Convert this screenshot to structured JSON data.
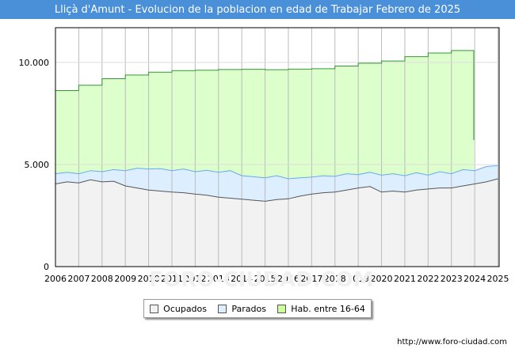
{
  "title": "Lliçà d'Amunt - Evolucion de la poblacion en edad de Trabajar Febrero de 2025",
  "footer_url": "http://www.foro-ciudad.com",
  "watermark": "FORO-CIUDAD.COM",
  "colors": {
    "title_bg": "#4a90d9",
    "ocupados_fill": "#f2f2f2",
    "ocupados_line": "#555555",
    "parados_fill": "#ddeeff",
    "parados_line": "#66aaee",
    "hab_fill": "#ddffcc",
    "hab_line": "#339933"
  },
  "chart_data": {
    "type": "area",
    "title": "Lliçà d'Amunt - Evolucion de la poblacion en edad de Trabajar Febrero de 2025",
    "xlabel": "",
    "ylabel": "",
    "xlim": [
      2006,
      2025.05
    ],
    "ylim": [
      0,
      11700
    ],
    "y_ticks": [
      0,
      5000,
      10000
    ],
    "y_tick_labels": [
      "0",
      "5.000",
      "10.000"
    ],
    "x_ticks": [
      2006,
      2007,
      2008,
      2009,
      2010,
      2011,
      2012,
      2013,
      2014,
      2015,
      2016,
      2017,
      2018,
      2019,
      2020,
      2021,
      2022,
      2023,
      2024,
      2025
    ],
    "x_tick_labels": [
      "2006",
      "2007",
      "2008",
      "2009",
      "2010",
      "2011",
      "2012",
      "2013",
      "2014",
      "2015",
      "2016",
      "2017",
      "2018",
      "2019",
      "2020",
      "2021",
      "2022",
      "2023",
      "2024",
      "2025"
    ],
    "grid": true,
    "legend_position": "bottom-center",
    "series": [
      {
        "name": "Hab. entre 16-64",
        "points": [
          [
            2006.0,
            8620
          ],
          [
            2007.0,
            8880
          ],
          [
            2008.0,
            9200
          ],
          [
            2009.0,
            9380
          ],
          [
            2010.0,
            9520
          ],
          [
            2011.0,
            9600
          ],
          [
            2012.0,
            9620
          ],
          [
            2013.0,
            9650
          ],
          [
            2014.0,
            9660
          ],
          [
            2015.0,
            9640
          ],
          [
            2016.0,
            9670
          ],
          [
            2017.0,
            9690
          ],
          [
            2018.0,
            9820
          ],
          [
            2019.0,
            9960
          ],
          [
            2020.0,
            10070
          ],
          [
            2021.0,
            10280
          ],
          [
            2022.0,
            10460
          ],
          [
            2023.0,
            10580
          ],
          [
            2023.92,
            10580
          ],
          [
            2023.96,
            6200
          ]
        ]
      },
      {
        "name": "Parados",
        "points": [
          [
            2006.0,
            4550
          ],
          [
            2006.5,
            4620
          ],
          [
            2007.0,
            4550
          ],
          [
            2007.5,
            4700
          ],
          [
            2008.0,
            4650
          ],
          [
            2008.5,
            4750
          ],
          [
            2009.0,
            4700
          ],
          [
            2009.5,
            4820
          ],
          [
            2010.0,
            4780
          ],
          [
            2010.5,
            4800
          ],
          [
            2011.0,
            4700
          ],
          [
            2011.5,
            4780
          ],
          [
            2012.0,
            4650
          ],
          [
            2012.5,
            4720
          ],
          [
            2013.0,
            4620
          ],
          [
            2013.5,
            4700
          ],
          [
            2014.0,
            4450
          ],
          [
            2014.5,
            4400
          ],
          [
            2015.0,
            4350
          ],
          [
            2015.5,
            4450
          ],
          [
            2016.0,
            4300
          ],
          [
            2016.5,
            4350
          ],
          [
            2017.0,
            4380
          ],
          [
            2017.5,
            4450
          ],
          [
            2018.0,
            4420
          ],
          [
            2018.5,
            4550
          ],
          [
            2019.0,
            4500
          ],
          [
            2019.5,
            4620
          ],
          [
            2020.0,
            4480
          ],
          [
            2020.5,
            4550
          ],
          [
            2021.0,
            4450
          ],
          [
            2021.5,
            4600
          ],
          [
            2022.0,
            4480
          ],
          [
            2022.5,
            4650
          ],
          [
            2023.0,
            4550
          ],
          [
            2023.5,
            4750
          ],
          [
            2024.0,
            4700
          ],
          [
            2024.5,
            4900
          ],
          [
            2025.0,
            4950
          ]
        ]
      },
      {
        "name": "Ocupados",
        "points": [
          [
            2006.0,
            4050
          ],
          [
            2006.5,
            4150
          ],
          [
            2007.0,
            4100
          ],
          [
            2007.5,
            4250
          ],
          [
            2008.0,
            4150
          ],
          [
            2008.5,
            4180
          ],
          [
            2009.0,
            3950
          ],
          [
            2009.5,
            3850
          ],
          [
            2010.0,
            3750
          ],
          [
            2010.5,
            3700
          ],
          [
            2011.0,
            3650
          ],
          [
            2011.5,
            3620
          ],
          [
            2012.0,
            3550
          ],
          [
            2012.5,
            3500
          ],
          [
            2013.0,
            3400
          ],
          [
            2013.5,
            3350
          ],
          [
            2014.0,
            3300
          ],
          [
            2014.5,
            3250
          ],
          [
            2015.0,
            3200
          ],
          [
            2015.5,
            3280
          ],
          [
            2016.0,
            3320
          ],
          [
            2016.5,
            3450
          ],
          [
            2017.0,
            3550
          ],
          [
            2017.5,
            3620
          ],
          [
            2018.0,
            3650
          ],
          [
            2018.5,
            3750
          ],
          [
            2019.0,
            3850
          ],
          [
            2019.5,
            3920
          ],
          [
            2020.0,
            3650
          ],
          [
            2020.5,
            3700
          ],
          [
            2021.0,
            3650
          ],
          [
            2021.5,
            3750
          ],
          [
            2022.0,
            3800
          ],
          [
            2022.5,
            3850
          ],
          [
            2023.0,
            3850
          ],
          [
            2023.5,
            3950
          ],
          [
            2024.0,
            4050
          ],
          [
            2024.5,
            4150
          ],
          [
            2025.0,
            4300
          ]
        ]
      }
    ]
  }
}
